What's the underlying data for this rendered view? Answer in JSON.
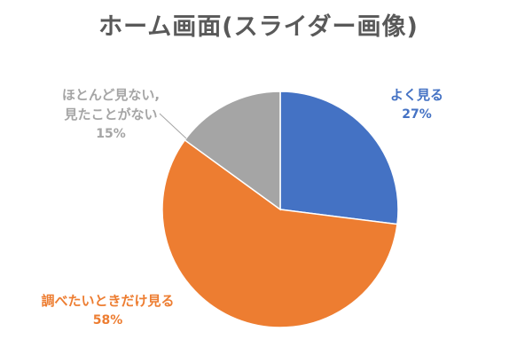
{
  "chart_data": {
    "type": "pie",
    "title": "ホーム画面(スライダー画像)",
    "slices": [
      {
        "label": "よく見る",
        "value": 27,
        "value_label": "27%",
        "color": "#4472C4"
      },
      {
        "label": "調べたいときだけ見る",
        "value": 58,
        "value_label": "58%",
        "color": "#ED7D31"
      },
      {
        "label_lines": [
          "ほとんど見ない,",
          "見たことがない"
        ],
        "value": 15,
        "value_label": "15%",
        "color": "#A5A5A5"
      }
    ],
    "start_angle_deg": 0,
    "direction": "clockwise",
    "legend": "none"
  }
}
